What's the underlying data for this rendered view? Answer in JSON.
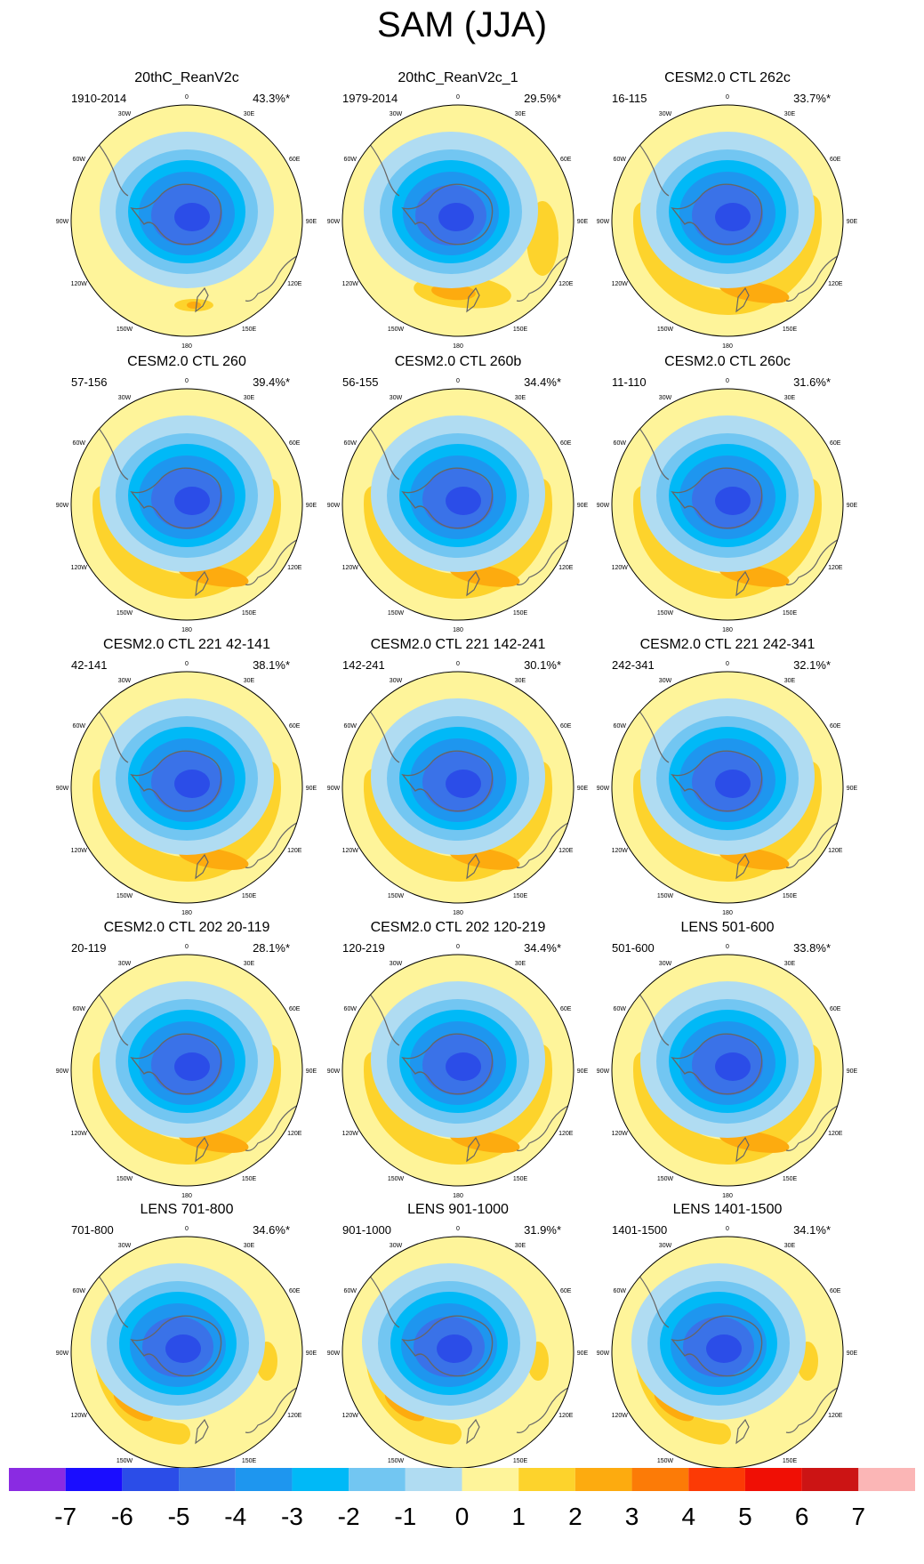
{
  "title": "SAM (JJA)",
  "chart_data": {
    "type": "polar-contour-maps",
    "title": "SAM (JJA)",
    "projection": "south polar stereographic",
    "longitude_labels": [
      "0",
      "30E",
      "60E",
      "90E",
      "120E",
      "150E",
      "180",
      "150W",
      "120W",
      "90W",
      "60W",
      "30W"
    ],
    "panels": [
      {
        "title": "20thC_ReanV2c",
        "years": "1910-2014",
        "variance": "43.3%*"
      },
      {
        "title": "20thC_ReanV2c_1",
        "years": "1979-2014",
        "variance": "29.5%*"
      },
      {
        "title": "CESM2.0 CTL 262c",
        "years": "16-115",
        "variance": "33.7%*"
      },
      {
        "title": "CESM2.0 CTL 260",
        "years": "57-156",
        "variance": "39.4%*"
      },
      {
        "title": "CESM2.0 CTL 260b",
        "years": "56-155",
        "variance": "34.4%*"
      },
      {
        "title": "CESM2.0 CTL 260c",
        "years": "11-110",
        "variance": "31.6%*"
      },
      {
        "title": "CESM2.0 CTL 221 42-141",
        "years": "42-141",
        "variance": "38.1%*"
      },
      {
        "title": "CESM2.0 CTL 221 142-241",
        "years": "142-241",
        "variance": "30.1%*"
      },
      {
        "title": "CESM2.0 CTL 221 242-341",
        "years": "242-341",
        "variance": "32.1%*"
      },
      {
        "title": "CESM2.0 CTL 202 20-119",
        "years": "20-119",
        "variance": "28.1%*"
      },
      {
        "title": "CESM2.0 CTL 202 120-219",
        "years": "120-219",
        "variance": "34.4%*"
      },
      {
        "title": "LENS 501-600",
        "years": "501-600",
        "variance": "33.8%*"
      },
      {
        "title": "LENS 701-800",
        "years": "701-800",
        "variance": "34.6%*"
      },
      {
        "title": "LENS 901-1000",
        "years": "901-1000",
        "variance": "31.9%*"
      },
      {
        "title": "LENS 1401-1500",
        "years": "1401-1500",
        "variance": "34.1%*"
      }
    ],
    "colorbar": {
      "ticks": [
        "-7",
        "-6",
        "-5",
        "-4",
        "-3",
        "-2",
        "-1",
        "0",
        "1",
        "2",
        "3",
        "4",
        "5",
        "6",
        "7"
      ],
      "colors": [
        "#8a2be2",
        "#1a0dff",
        "#2b4de8",
        "#3a72e8",
        "#1e96ef",
        "#00b9f7",
        "#72c6f2",
        "#b0dcf2",
        "#fef49a",
        "#fdd32c",
        "#fdab0f",
        "#fc7b07",
        "#fc3a05",
        "#f00f05",
        "#cc1414",
        "#fbb6b6"
      ]
    }
  }
}
